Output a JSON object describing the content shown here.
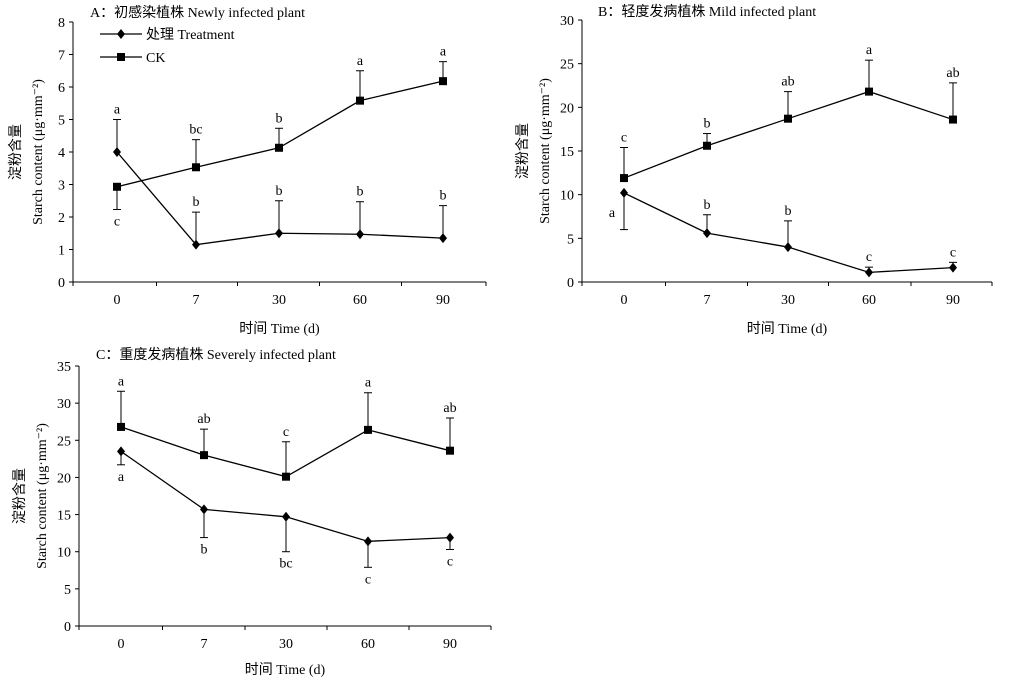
{
  "chart_data": [
    {
      "type": "line",
      "title": "A：初感染植株 Newly infected plant",
      "xlabel": "时间 Time (d)",
      "ylabel_cn": "淀粉含量",
      "ylabel_en": "Starch content (μg·mm⁻²)",
      "categories": [
        "0",
        "7",
        "30",
        "60",
        "90"
      ],
      "ylim": [
        0,
        8
      ],
      "yticks": [
        0,
        1,
        2,
        3,
        4,
        5,
        6,
        7,
        8
      ],
      "legend": true,
      "series": [
        {
          "name": "处理 Treatment",
          "marker": "diamond",
          "values": [
            4.0,
            1.15,
            1.5,
            1.47,
            1.35
          ],
          "errors": [
            1.0,
            1.0,
            1.0,
            1.0,
            1.0
          ],
          "labels": [
            "a",
            "b",
            "b",
            "b",
            "b"
          ],
          "label_positions": [
            "above",
            "above",
            "above",
            "above",
            "above"
          ]
        },
        {
          "name": "CK",
          "marker": "square",
          "values": [
            2.93,
            3.53,
            4.13,
            5.58,
            6.18
          ],
          "errors": [
            0.7,
            0.85,
            0.6,
            0.92,
            0.6
          ],
          "labels": [
            "c",
            "bc",
            "b",
            "a",
            "a"
          ],
          "label_positions": [
            "below",
            "above",
            "above",
            "above",
            "above"
          ]
        }
      ]
    },
    {
      "type": "line",
      "title": "B：轻度发病植株 Mild infected plant",
      "xlabel": "时间 Time (d)",
      "ylabel_cn": "淀粉含量",
      "ylabel_en": "Starch content (μg·mm⁻²)",
      "categories": [
        "0",
        "7",
        "30",
        "60",
        "90"
      ],
      "ylim": [
        0,
        30
      ],
      "yticks": [
        0,
        5,
        10,
        15,
        20,
        25,
        30
      ],
      "legend": false,
      "series": [
        {
          "name": "Treatment",
          "marker": "diamond",
          "values": [
            10.2,
            5.6,
            4.0,
            1.1,
            1.65
          ],
          "errors": [
            4.2,
            2.1,
            3.0,
            0.6,
            0.6
          ],
          "labels": [
            "a",
            "b",
            "b",
            "c",
            "c"
          ],
          "label_positions": [
            "left",
            "above",
            "above",
            "above",
            "above"
          ]
        },
        {
          "name": "CK",
          "marker": "square",
          "values": [
            11.9,
            15.6,
            18.7,
            21.8,
            18.6
          ],
          "errors": [
            3.5,
            1.4,
            3.1,
            3.6,
            4.2
          ],
          "labels": [
            "c",
            "b",
            "ab",
            "a",
            "ab"
          ],
          "label_positions": [
            "above",
            "above",
            "above",
            "above",
            "above"
          ]
        }
      ]
    },
    {
      "type": "line",
      "title": "C：重度发病植株 Severely infected plant",
      "xlabel": "时间 Time (d)",
      "ylabel_cn": "淀粉含量",
      "ylabel_en": "Starch content (μg·mm⁻²)",
      "categories": [
        "0",
        "7",
        "30",
        "60",
        "90"
      ],
      "ylim": [
        0,
        35
      ],
      "yticks": [
        0,
        5,
        10,
        15,
        20,
        25,
        30,
        35
      ],
      "legend": false,
      "series": [
        {
          "name": "Treatment",
          "marker": "diamond",
          "values": [
            23.5,
            15.7,
            14.7,
            11.4,
            11.9
          ],
          "errors": [
            1.8,
            3.8,
            4.7,
            3.5,
            1.6
          ],
          "labels": [
            "a",
            "b",
            "bc",
            "c",
            "c"
          ],
          "label_positions": [
            "below",
            "below",
            "below",
            "below",
            "below"
          ]
        },
        {
          "name": "CK",
          "marker": "square",
          "values": [
            26.8,
            23.0,
            20.1,
            26.4,
            23.6
          ],
          "errors": [
            4.8,
            3.5,
            4.7,
            5.0,
            4.4
          ],
          "labels": [
            "a",
            "ab",
            "c",
            "a",
            "ab"
          ],
          "label_positions": [
            "above",
            "above",
            "above",
            "above",
            "above"
          ]
        }
      ]
    }
  ]
}
